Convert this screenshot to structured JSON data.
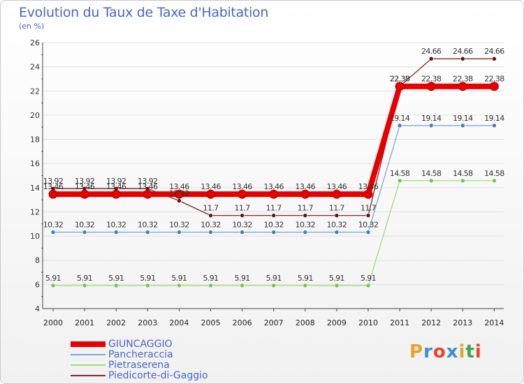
{
  "header": {
    "title": "Evolution du Taux de Taxe d'Habitation",
    "unit": "(en %)"
  },
  "logo": {
    "text": "Proxiti",
    "letter_colors": [
      "#e8a32a",
      "#3a8fd8",
      "#e8452a",
      "#3a8fd8",
      "#e8a32a",
      "#3aa84a",
      "#e8452a"
    ]
  },
  "chart_data": {
    "type": "line",
    "title": "Evolution du Taux de Taxe d'Habitation",
    "ylabel": "(en %)",
    "xlabel": "",
    "x": [
      "2000",
      "2001",
      "2002",
      "2003",
      "2004",
      "2005",
      "2006",
      "2007",
      "2008",
      "2009",
      "2010",
      "2011",
      "2012",
      "2013",
      "2014"
    ],
    "ylim": [
      4,
      26
    ],
    "yticks": [
      4,
      6,
      8,
      10,
      12,
      14,
      16,
      18,
      20,
      22,
      24,
      26
    ],
    "grid": "horizontal",
    "legend_position": "bottom-left",
    "series": [
      {
        "name": "GIUNCAGGIO",
        "color": "#e60000",
        "marker_color": "#e60000",
        "values": [
          13.46,
          13.46,
          13.46,
          13.46,
          13.46,
          13.46,
          13.46,
          13.46,
          13.46,
          13.46,
          13.46,
          22.38,
          22.38,
          22.38,
          22.38
        ],
        "labels": [
          "13.46",
          "13.46",
          "13.46",
          "13.46",
          "13.46",
          "13.46",
          "13.46",
          "13.46",
          "13.46",
          "13.46",
          "13.46",
          "22.38",
          "22.38",
          "22.38",
          "22.38"
        ]
      },
      {
        "name": "Pancheraccia",
        "color": "#7aaad8",
        "marker_color": "#3a80c8",
        "values": [
          10.32,
          10.32,
          10.32,
          10.32,
          10.32,
          10.32,
          10.32,
          10.32,
          10.32,
          10.32,
          10.32,
          19.14,
          19.14,
          19.14,
          19.14
        ],
        "labels": [
          "10.32",
          "10.32",
          "10.32",
          "10.32",
          "10.32",
          "10.32",
          "10.32",
          "10.32",
          "10.32",
          "10.32",
          "10.32",
          "19.14",
          "19.14",
          "19.14",
          "19.14"
        ]
      },
      {
        "name": "Pietraserena",
        "color": "#9ae07a",
        "marker_color": "#6cc84a",
        "values": [
          5.91,
          5.91,
          5.91,
          5.91,
          5.91,
          5.91,
          5.91,
          5.91,
          5.91,
          5.91,
          5.91,
          14.58,
          14.58,
          14.58,
          14.58
        ],
        "labels": [
          "5.91",
          "5.91",
          "5.91",
          "5.91",
          "5.91",
          "5.91",
          "5.91",
          "5.91",
          "5.91",
          "5.91",
          "5.91",
          "14.58",
          "14.58",
          "14.58",
          "14.58"
        ]
      },
      {
        "name": "Piedicorte-di-Gaggio",
        "color": "#7a2a2a",
        "marker_color": "#6a1010",
        "values": [
          13.92,
          13.92,
          13.92,
          13.92,
          12.92,
          11.7,
          11.7,
          11.7,
          11.7,
          11.7,
          11.7,
          22.38,
          24.66,
          24.66,
          24.66
        ],
        "labels": [
          "13.92",
          "13.92",
          "13.92",
          "13.92",
          "12.92",
          "11.7",
          "11.7",
          "11.7",
          "11.7",
          "11.7",
          "11.7",
          "22.38",
          "24.66",
          "24.66",
          "24.66"
        ]
      }
    ]
  }
}
